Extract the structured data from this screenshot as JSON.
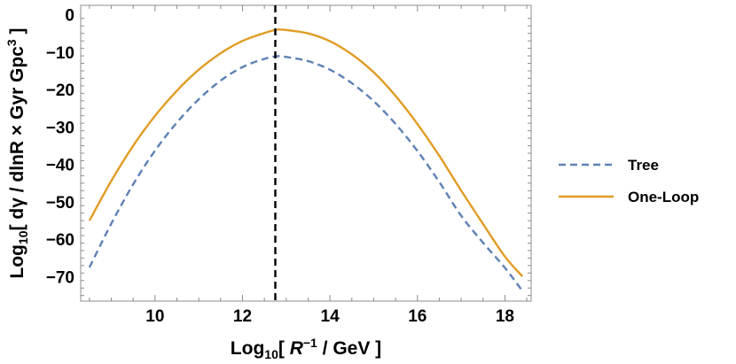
{
  "chart_data": {
    "type": "line",
    "xlabel": {
      "prefix": "Log",
      "sub": "10",
      "open": "[ ",
      "var": "R",
      "sup": "−1",
      "rest": " / GeV ]"
    },
    "ylabel": {
      "prefix": "Log",
      "sub": "10",
      "rest": "[ dγ / dlnR × Gyr Gpc",
      "sup": "3",
      "close": " ]"
    },
    "xlim": [
      8.3,
      18.6
    ],
    "ylim": [
      -76.5,
      2.5
    ],
    "xticks": [
      10,
      12,
      14,
      16,
      18
    ],
    "yticks": [
      0,
      -10,
      -20,
      -30,
      -40,
      -50,
      -60,
      -70
    ],
    "xtick_labels": [
      "10",
      "12",
      "14",
      "16",
      "18"
    ],
    "ytick_labels": [
      "0",
      "−10",
      "−20",
      "−30",
      "−40",
      "−50",
      "−60",
      "−70"
    ],
    "grid": false,
    "legend_placement": "right",
    "vline": {
      "x": 12.75,
      "color": "#000000",
      "style": "dashed"
    },
    "series": [
      {
        "name": "Tree",
        "color": "#5E81B5",
        "style": "dashed",
        "x": [
          8.5,
          9.0,
          9.5,
          10.0,
          10.5,
          11.0,
          11.5,
          12.0,
          12.5,
          12.8,
          13.0,
          13.5,
          14.0,
          14.5,
          15.0,
          15.5,
          16.0,
          16.5,
          17.0,
          17.5,
          18.0,
          18.4
        ],
        "y": [
          -67.5,
          -55.8,
          -45.3,
          -36.3,
          -28.8,
          -22.6,
          -17.6,
          -14.0,
          -11.8,
          -11.1,
          -11.3,
          -12.4,
          -14.7,
          -18.3,
          -23.1,
          -29.2,
          -36.4,
          -44.7,
          -53.7,
          -60.9,
          -67.6,
          -73.8
        ]
      },
      {
        "name": "One-Loop",
        "color": "#E19C24",
        "style": "solid",
        "x": [
          8.5,
          9.0,
          9.5,
          10.0,
          10.5,
          11.0,
          11.5,
          12.0,
          12.5,
          12.8,
          13.0,
          13.5,
          14.0,
          14.5,
          15.0,
          15.5,
          16.0,
          16.5,
          17.0,
          17.5,
          18.0,
          18.4
        ],
        "y": [
          -55.0,
          -44.4,
          -35.0,
          -27.0,
          -20.3,
          -14.7,
          -10.3,
          -7.0,
          -4.9,
          -4.0,
          -4.1,
          -5.0,
          -7.1,
          -10.6,
          -15.4,
          -21.7,
          -29.2,
          -37.7,
          -47.0,
          -55.9,
          -64.6,
          -69.9
        ]
      }
    ]
  }
}
